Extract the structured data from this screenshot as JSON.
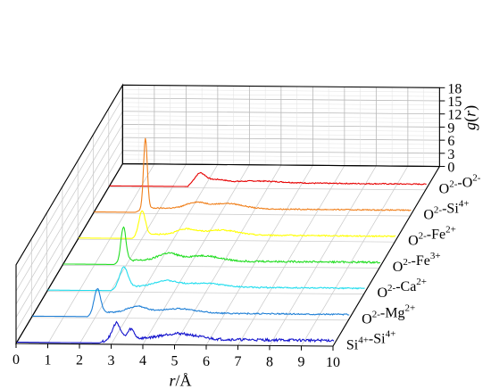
{
  "chart_data": {
    "type": "line",
    "layout3d": "waterfall",
    "x_axis": {
      "label": "r",
      "unit": "Å",
      "range": [
        0,
        10
      ],
      "ticks": [
        "0",
        "1",
        "2",
        "3",
        "4",
        "5",
        "6",
        "7",
        "8",
        "9",
        "10"
      ]
    },
    "z_axis": {
      "label": "g",
      "arg": "r",
      "range": [
        0,
        18
      ],
      "ticks": [
        "0",
        "3",
        "6",
        "9",
        "12",
        "15",
        "18"
      ]
    },
    "grid": true,
    "series": [
      {
        "name": "O2--O2-",
        "label_parts": [
          [
            "O",
            ""
          ],
          [
            "2-",
            "sup"
          ],
          [
            "-O",
            ""
          ],
          [
            "2-",
            "sup"
          ]
        ],
        "color": "#e60000",
        "peaks": [
          [
            2.85,
            2.1,
            0.18
          ],
          [
            3.4,
            0.6,
            0.25
          ],
          [
            4.7,
            0.4,
            0.7
          ]
        ],
        "offset": 1.0,
        "noise": 0.12,
        "rmin": 2.5
      },
      {
        "name": "O2--Si4+",
        "label_parts": [
          [
            "O",
            ""
          ],
          [
            "2-",
            "sup"
          ],
          [
            "-Si",
            ""
          ],
          [
            "4+",
            "sup"
          ]
        ],
        "color": "#f07f1a",
        "peaks": [
          [
            1.62,
            16.0,
            0.06
          ],
          [
            3.2,
            1.3,
            0.3
          ],
          [
            4.2,
            1.2,
            0.5
          ]
        ],
        "offset": 1.0,
        "noise": 0.12,
        "rmin": 1.3
      },
      {
        "name": "O2--Fe2+",
        "label_parts": [
          [
            "O",
            ""
          ],
          [
            "2-",
            "sup"
          ],
          [
            "-Fe",
            ""
          ],
          [
            "2+",
            "sup"
          ]
        ],
        "color": "#ffff00",
        "peaks": [
          [
            2.0,
            5.5,
            0.1
          ],
          [
            3.4,
            1.2,
            0.3
          ],
          [
            4.5,
            1.1,
            0.5
          ]
        ],
        "offset": 1.0,
        "noise": 0.14,
        "rmin": 1.7
      },
      {
        "name": "O2--Fe3+",
        "label_parts": [
          [
            "O",
            ""
          ],
          [
            "2-",
            "sup"
          ],
          [
            "-Fe",
            ""
          ],
          [
            "3+",
            "sup"
          ]
        ],
        "color": "#22dd22",
        "peaks": [
          [
            1.9,
            7.8,
            0.08
          ],
          [
            3.3,
            1.6,
            0.3
          ],
          [
            4.4,
            1.2,
            0.5
          ]
        ],
        "offset": 1.0,
        "noise": 0.2,
        "rmin": 1.6
      },
      {
        "name": "O2--Ca2+",
        "label_parts": [
          [
            "O",
            ""
          ],
          [
            "2-",
            "sup"
          ],
          [
            "-Ca",
            ""
          ],
          [
            "2+",
            "sup"
          ]
        ],
        "color": "#22ddee",
        "peaks": [
          [
            2.4,
            4.4,
            0.13
          ],
          [
            3.7,
            1.3,
            0.35
          ],
          [
            4.9,
            0.9,
            0.6
          ]
        ],
        "offset": 1.0,
        "noise": 0.14,
        "rmin": 2.0
      },
      {
        "name": "O2--Mg2+",
        "label_parts": [
          [
            "O",
            ""
          ],
          [
            "2-",
            "sup"
          ],
          [
            "-Mg",
            ""
          ],
          [
            "2+",
            "sup"
          ]
        ],
        "color": "#1e7fd6",
        "peaks": [
          [
            2.05,
            5.6,
            0.1
          ],
          [
            3.3,
            1.4,
            0.3
          ],
          [
            4.6,
            1.0,
            0.55
          ]
        ],
        "offset": 1.0,
        "noise": 0.15,
        "rmin": 1.75
      },
      {
        "name": "Si4+-Si4+",
        "label_parts": [
          [
            "Si",
            ""
          ],
          [
            "4+",
            "sup"
          ],
          [
            "-Si",
            ""
          ],
          [
            "4+",
            "sup"
          ]
        ],
        "color": "#1212cc",
        "peaks": [
          [
            3.15,
            3.6,
            0.12
          ],
          [
            3.6,
            2.2,
            0.1
          ],
          [
            5.1,
            1.3,
            0.55
          ]
        ],
        "offset": 1.0,
        "noise": 0.3,
        "rmin": 2.6
      }
    ]
  }
}
